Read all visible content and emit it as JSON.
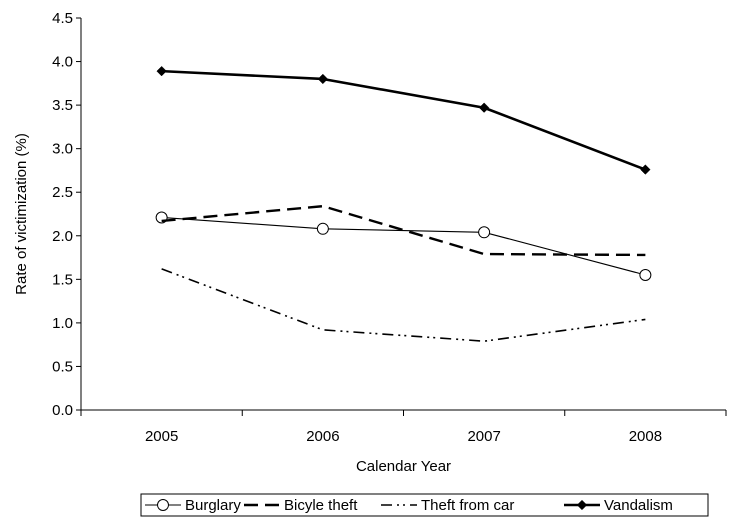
{
  "chart_data": {
    "type": "line",
    "title": "",
    "xlabel": "Calendar Year",
    "ylabel": "Rate of victimization (%)",
    "categories": [
      "2005",
      "2006",
      "2007",
      "2008"
    ],
    "ylim": [
      0,
      4.5
    ],
    "yticks": [
      "0.0",
      "0.5",
      "1.0",
      "1.5",
      "2.0",
      "2.5",
      "3.0",
      "3.5",
      "4.0",
      "4.5"
    ],
    "grid": false,
    "legend_position": "bottom",
    "series": [
      {
        "name": "Burglary",
        "values": [
          2.21,
          2.08,
          2.04,
          1.55
        ],
        "line_style": "thin-solid",
        "marker": "open-circle",
        "color": "#000000"
      },
      {
        "name": "Bicyle theft",
        "values": [
          2.17,
          2.34,
          1.79,
          1.78
        ],
        "line_style": "long-dash",
        "marker": "none",
        "color": "#000000"
      },
      {
        "name": "Theft from car",
        "values": [
          1.62,
          0.92,
          0.79,
          1.04
        ],
        "line_style": "dash-dot-dot",
        "marker": "none",
        "color": "#000000"
      },
      {
        "name": "Vandalism",
        "values": [
          3.89,
          3.8,
          3.47,
          2.76
        ],
        "line_style": "thick-solid",
        "marker": "filled-diamond",
        "color": "#000000"
      }
    ]
  }
}
